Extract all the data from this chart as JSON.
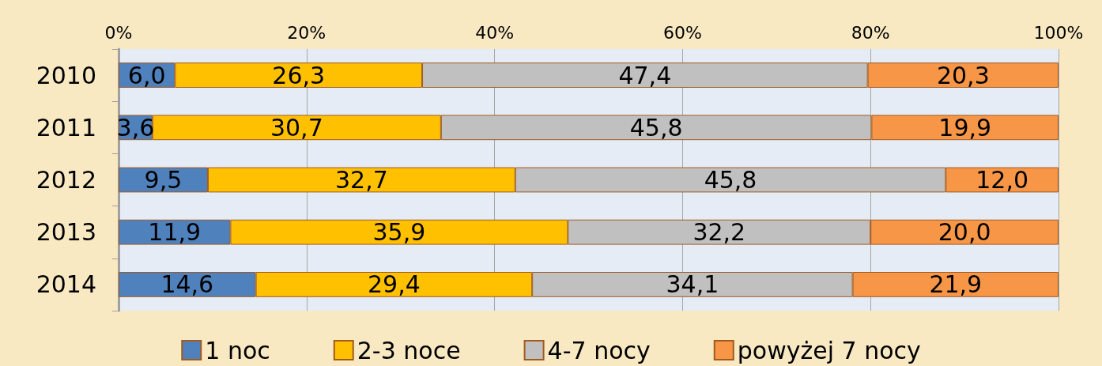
{
  "chart_data": {
    "type": "bar",
    "orientation": "horizontal",
    "stacked": true,
    "categories": [
      "2010",
      "2011",
      "2012",
      "2013",
      "2014"
    ],
    "series": [
      {
        "name": "1 noc",
        "color": "#4f81bd",
        "values": [
          6.0,
          3.6,
          9.5,
          11.9,
          14.6
        ],
        "value_labels": [
          "6,0",
          "3,6",
          "9,5",
          "11,9",
          "14,6"
        ]
      },
      {
        "name": "2-3 noce",
        "color": "#ffc000",
        "values": [
          26.3,
          30.7,
          32.7,
          35.9,
          29.4
        ],
        "value_labels": [
          "26,3",
          "30,7",
          "32,7",
          "35,9",
          "29,4"
        ]
      },
      {
        "name": "4-7 nocy",
        "color": "#c0c0c0",
        "values": [
          47.4,
          45.8,
          45.8,
          32.2,
          34.1
        ],
        "value_labels": [
          "47,4",
          "45,8",
          "45,8",
          "32,2",
          "34,1"
        ]
      },
      {
        "name": "powyżej 7 nocy",
        "color": "#f79646",
        "values": [
          20.3,
          19.9,
          12.0,
          20.0,
          21.9
        ],
        "value_labels": [
          "20,3",
          "19,9",
          "12,0",
          "20,0",
          "21,9"
        ]
      }
    ],
    "xlim": [
      0,
      100
    ],
    "xticks": [
      {
        "value": 0,
        "label": "0%"
      },
      {
        "value": 20,
        "label": "20%"
      },
      {
        "value": 40,
        "label": "40%"
      },
      {
        "value": 60,
        "label": "60%"
      },
      {
        "value": 80,
        "label": "80%"
      },
      {
        "value": 100,
        "label": "100%"
      }
    ],
    "grid": "x",
    "legend": "bottom"
  }
}
